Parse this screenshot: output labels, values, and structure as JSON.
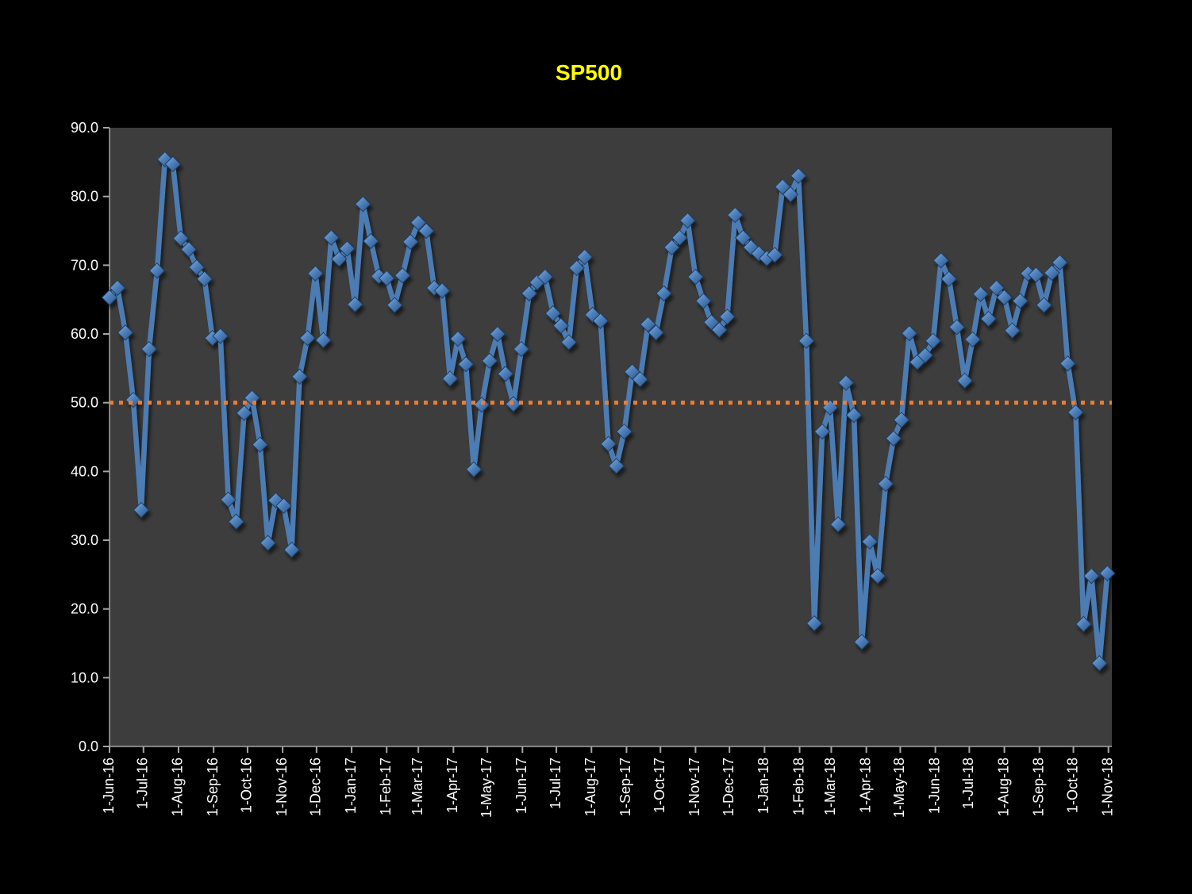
{
  "chart_data": {
    "type": "line",
    "title": "SP500",
    "title_color": "#FFFF00",
    "series_name": "SP500",
    "start_date": "2016-06-01",
    "interval_days": 7,
    "x_axis_total_days": 886,
    "values": [
      65.3,
      66.7,
      60.2,
      50.4,
      34.4,
      57.8,
      69.2,
      85.4,
      84.7,
      73.9,
      72.3,
      69.7,
      68.0,
      59.4,
      59.7,
      35.9,
      32.7,
      48.5,
      50.7,
      43.9,
      29.6,
      35.8,
      35.0,
      28.6,
      53.8,
      59.4,
      68.8,
      59.1,
      74.0,
      70.9,
      72.4,
      64.3,
      78.9,
      73.5,
      68.4,
      68.1,
      64.2,
      68.5,
      73.4,
      76.2,
      75.0,
      66.7,
      66.3,
      53.5,
      59.3,
      55.6,
      40.3,
      49.7,
      56.1,
      60.0,
      54.2,
      49.8,
      57.8,
      65.9,
      67.5,
      68.3,
      63.0,
      61.2,
      58.8,
      69.6,
      71.2,
      62.8,
      61.9,
      44.0,
      40.8,
      45.8,
      54.5,
      53.4,
      61.4,
      60.2,
      65.9,
      72.6,
      74.0,
      76.5,
      68.3,
      64.8,
      61.7,
      60.6,
      62.5,
      77.3,
      74.0,
      72.6,
      71.7,
      71.0,
      71.5,
      81.4,
      80.3,
      83.0,
      59.0,
      17.9,
      45.8,
      49.3,
      32.3,
      52.9,
      48.2,
      15.2,
      29.8,
      24.8,
      38.2,
      44.8,
      47.5,
      60.1,
      55.9,
      56.9,
      59.0,
      70.7,
      68.0,
      61.0,
      53.2,
      59.2,
      65.8,
      62.2,
      66.7,
      65.3,
      60.5,
      64.8,
      68.8,
      68.6,
      64.2,
      68.9,
      70.4,
      55.7,
      48.6,
      17.8,
      24.8,
      12.1,
      25.2
    ],
    "x_tick_labels": [
      "1-Jun-16",
      "1-Jul-16",
      "1-Aug-16",
      "1-Sep-16",
      "1-Oct-16",
      "1-Nov-16",
      "1-Dec-16",
      "1-Jan-17",
      "1-Feb-17",
      "1-Mar-17",
      "1-Apr-17",
      "1-May-17",
      "1-Jun-17",
      "1-Jul-17",
      "1-Aug-17",
      "1-Sep-17",
      "1-Oct-17",
      "1-Nov-17",
      "1-Dec-17",
      "1-Jan-18",
      "1-Feb-18",
      "1-Mar-18",
      "1-Apr-18",
      "1-May-18",
      "1-Jun-18",
      "1-Jul-18",
      "1-Aug-18",
      "1-Sep-18",
      "1-Oct-18",
      "1-Nov-18"
    ],
    "y_tick_labels": [
      "90.0",
      "80.0",
      "70.0",
      "60.0",
      "50.0",
      "40.0",
      "30.0",
      "20.0",
      "10.0",
      "0.0"
    ],
    "ylim": [
      0,
      90
    ],
    "grid": "off",
    "legend": "none",
    "reference_line": {
      "value": 50.0,
      "color": "#ED7D31",
      "style": "dotted"
    },
    "colors": {
      "page_background": "#000000",
      "plot_background": "#3D3D3D",
      "axis": "#A6A6A6",
      "tick_label": "#FFFFFF",
      "series_line": "#4C7BB4",
      "marker_light": "#85B1E0",
      "marker_mid": "#4F81BD",
      "marker_dark": "#2A5183",
      "marker_edge": "#1F3F63"
    }
  }
}
